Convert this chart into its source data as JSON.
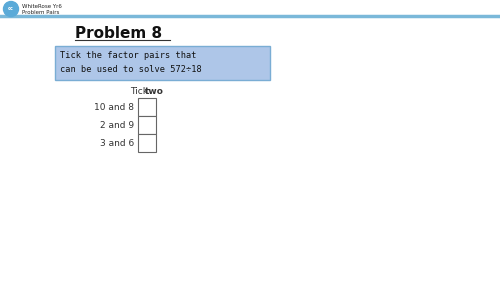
{
  "title": "Problem 8",
  "instruction_line1": "Tick the factor pairs that",
  "instruction_line2": "can be used to solve 572÷18",
  "instruction_bg": "#aec6e8",
  "instruction_border": "#7aadd4",
  "tick_label_normal": "Tick ",
  "tick_label_bold": "two",
  "options": [
    "10 and 8",
    "2 and 9",
    "3 and 6"
  ],
  "header_text_top": "WhiteRose Yr6",
  "header_text_bottom": "Problem Pairs",
  "header_line_color": "#7ab8d9",
  "bg_color": "#ffffff",
  "title_color": "#111111",
  "instruction_text_color": "#111111",
  "option_text_color": "#333333",
  "fig_width": 5.0,
  "fig_height": 2.81,
  "dpi": 100
}
